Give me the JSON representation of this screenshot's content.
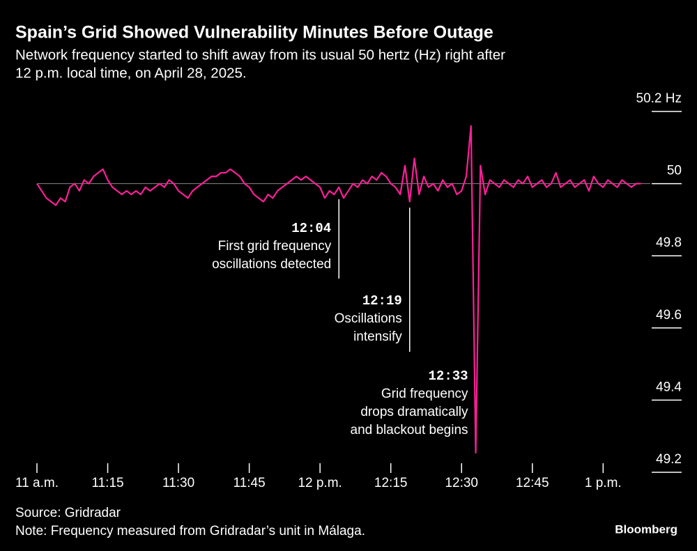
{
  "chart_data": {
    "type": "line",
    "title": "Spain’s Grid Showed Vulnerability Minutes Before Outage",
    "subtitle": [
      "Network frequency started to shift away from its usual 50 hertz (Hz) right after",
      "12 p.m. local time, on April 28, 2025."
    ],
    "source": "Source: Gridradar",
    "note": "Note: Frequency measured from Gridradar’s unit in Málaga.",
    "brand": "Bloomberg",
    "x": [
      "11:00",
      "11:01",
      "11:02",
      "11:03",
      "11:04",
      "11:05",
      "11:06",
      "11:07",
      "11:08",
      "11:09",
      "11:10",
      "11:11",
      "11:12",
      "11:13",
      "11:14",
      "11:15",
      "11:16",
      "11:17",
      "11:18",
      "11:19",
      "11:20",
      "11:21",
      "11:22",
      "11:23",
      "11:24",
      "11:25",
      "11:26",
      "11:27",
      "11:28",
      "11:29",
      "11:30",
      "11:31",
      "11:32",
      "11:33",
      "11:34",
      "11:35",
      "11:36",
      "11:37",
      "11:38",
      "11:39",
      "11:40",
      "11:41",
      "11:42",
      "11:43",
      "11:44",
      "11:45",
      "11:46",
      "11:47",
      "11:48",
      "11:49",
      "11:50",
      "11:51",
      "11:52",
      "11:53",
      "11:54",
      "11:55",
      "11:56",
      "11:57",
      "11:58",
      "11:59",
      "12:00",
      "12:01",
      "12:02",
      "12:03",
      "12:04",
      "12:05",
      "12:06",
      "12:07",
      "12:08",
      "12:09",
      "12:10",
      "12:11",
      "12:12",
      "12:13",
      "12:14",
      "12:15",
      "12:16",
      "12:17",
      "12:18",
      "12:19",
      "12:20",
      "12:21",
      "12:22",
      "12:23",
      "12:24",
      "12:25",
      "12:26",
      "12:27",
      "12:28",
      "12:29",
      "12:30",
      "12:31",
      "12:32",
      "12:33",
      "12:34",
      "12:35",
      "12:36",
      "12:37",
      "12:38",
      "12:39",
      "12:40",
      "12:41",
      "12:42",
      "12:43",
      "12:44",
      "12:45",
      "12:46",
      "12:47",
      "12:48",
      "12:49",
      "12:50",
      "12:51",
      "12:52",
      "12:53",
      "12:54",
      "12:55",
      "12:56",
      "12:57",
      "12:58",
      "12:59",
      "13:00",
      "13:01",
      "13:02",
      "13:03",
      "13:04",
      "13:05",
      "13:06",
      "13:07",
      "13:08"
    ],
    "series": [
      {
        "name": "Frequency",
        "color": "#ff1f9a",
        "values": [
          50.0,
          49.98,
          49.96,
          49.95,
          49.94,
          49.96,
          49.95,
          49.99,
          50.0,
          49.98,
          50.01,
          50.0,
          50.02,
          50.03,
          50.04,
          50.01,
          49.99,
          49.98,
          49.97,
          49.98,
          49.97,
          49.98,
          49.97,
          49.99,
          49.98,
          49.99,
          50.0,
          49.99,
          50.01,
          50.0,
          49.98,
          49.97,
          49.96,
          49.98,
          49.99,
          50.0,
          50.01,
          50.02,
          50.02,
          50.03,
          50.03,
          50.04,
          50.03,
          50.02,
          50.0,
          49.99,
          49.97,
          49.96,
          49.95,
          49.97,
          49.96,
          49.98,
          49.99,
          50.0,
          50.01,
          50.02,
          50.01,
          50.02,
          50.01,
          50.0,
          49.99,
          49.96,
          49.98,
          49.97,
          49.99,
          49.96,
          49.98,
          50.0,
          49.99,
          50.01,
          50.0,
          50.02,
          50.01,
          50.03,
          50.02,
          50.0,
          49.99,
          49.97,
          50.05,
          49.95,
          50.07,
          49.97,
          50.02,
          49.99,
          50.0,
          49.98,
          50.01,
          49.99,
          50.0,
          49.97,
          49.98,
          50.02,
          50.16,
          49.254,
          50.05,
          49.97,
          50.01,
          50.0,
          49.99,
          50.01,
          50.0,
          49.99,
          50.01,
          50.0,
          50.02,
          49.99,
          50.0,
          50.01,
          49.99,
          50.0,
          50.03,
          49.99,
          50.0,
          50.01,
          49.99,
          50.0,
          50.01,
          49.98,
          50.02,
          50.0,
          49.99,
          50.01,
          50.0,
          49.99,
          50.01,
          50.0,
          49.99,
          50.0,
          50.0
        ]
      }
    ],
    "xlim": [
      "11:00",
      "13:10"
    ],
    "xticks": [
      {
        "value": "11:00",
        "label": "11 a.m."
      },
      "11:15",
      "11:30",
      "11:45",
      {
        "value": "12:00",
        "label": "12 p.m."
      },
      "12:15",
      "12:30",
      "12:45",
      {
        "value": "13:00",
        "label": "1 p.m."
      }
    ],
    "ylim": [
      49.2,
      50.2
    ],
    "yticks": [
      49.2,
      49.4,
      49.6,
      49.8,
      50,
      {
        "value": 50.2,
        "label": "50.2 Hz"
      }
    ],
    "reference_line": 50,
    "annotations": [
      {
        "x": "12:04",
        "text": [
          "First grid frequency",
          "oscillations detected"
        ]
      },
      {
        "x": "12:19",
        "text": [
          "Oscillations",
          "intensify"
        ]
      },
      {
        "x": "12:33",
        "text": [
          "Grid frequency",
          "drops dramatically",
          "and blackout begins"
        ]
      }
    ]
  }
}
